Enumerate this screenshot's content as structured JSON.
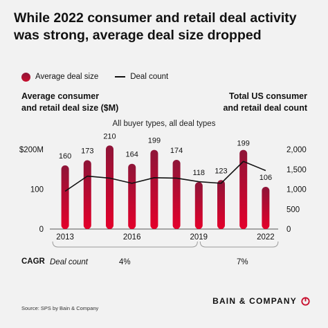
{
  "title": {
    "line1": "While 2022 consumer and retail deal activity",
    "line2": "was strong, average deal size dropped"
  },
  "legend": {
    "bar_label": "Average deal size",
    "line_label": "Deal count"
  },
  "left_axis_title": {
    "line1": "Average consumer",
    "line2": "and retail deal size ($M)"
  },
  "right_axis_title": {
    "line1": "Total US consumer",
    "line2": "and retail deal count"
  },
  "subtitle": "All buyer types, all deal types",
  "cagr": {
    "label": "CAGR",
    "metric": "Deal count",
    "period1_value": "4%",
    "period2_value": "7%"
  },
  "source": "Source: SPS by Bain & Company",
  "brand": "BAIN & COMPANY",
  "colors": {
    "bar_top": "#8e1538",
    "bar_bottom": "#e4002b",
    "line": "#111111",
    "background": "#f2f2f2"
  },
  "chart_data": {
    "type": "bar+line",
    "categories": [
      "2013",
      "2014",
      "2015",
      "2016",
      "2017",
      "2018",
      "2019",
      "2020",
      "2021",
      "2022"
    ],
    "x_tick_labels": [
      "2013",
      "2016",
      "2019",
      "2022"
    ],
    "period_brackets": [
      {
        "start": "2013",
        "end": "2019"
      },
      {
        "start": "2019",
        "end": "2022"
      }
    ],
    "series": [
      {
        "name": "Average deal size",
        "kind": "bar",
        "axis": "left",
        "values": [
          160,
          173,
          210,
          164,
          199,
          174,
          118,
          123,
          199,
          106
        ],
        "data_labels": [
          "160",
          "173",
          "210",
          "164",
          "199",
          "174",
          "118",
          "123",
          "199",
          "106"
        ]
      },
      {
        "name": "Deal count",
        "kind": "line",
        "axis": "right",
        "values": [
          950,
          1330,
          1280,
          1150,
          1290,
          1280,
          1190,
          1150,
          1700,
          1470
        ]
      }
    ],
    "left_axis": {
      "ylim": [
        0,
        200
      ],
      "ticks": [
        {
          "value": 0,
          "label": "0"
        },
        {
          "value": 100,
          "label": "100"
        },
        {
          "value": 200,
          "label": "$200M"
        }
      ]
    },
    "right_axis": {
      "ylim": [
        0,
        2000
      ],
      "ticks": [
        {
          "value": 0,
          "label": "0"
        },
        {
          "value": 500,
          "label": "500"
        },
        {
          "value": 1000,
          "label": "1,000"
        },
        {
          "value": 1500,
          "label": "1,500"
        },
        {
          "value": 2000,
          "label": "2,000"
        }
      ]
    },
    "grid": false
  }
}
